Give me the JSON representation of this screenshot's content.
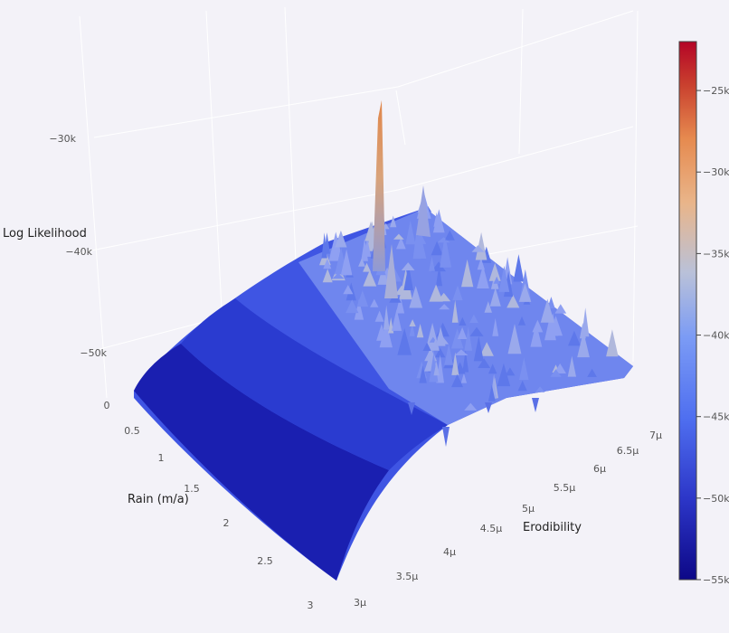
{
  "chart_data": {
    "type": "surface",
    "x_axis": {
      "label": "Rain (m/a)",
      "ticks": [
        "0",
        "0.5",
        "1",
        "1.5",
        "2",
        "2.5",
        "3"
      ],
      "range": [
        0,
        3
      ]
    },
    "y_axis": {
      "label": "Erodibility",
      "ticks": [
        "3μ",
        "3.5μ",
        "4μ",
        "4.5μ",
        "5μ",
        "5.5μ",
        "6μ",
        "6.5μ",
        "7μ"
      ],
      "range": [
        3e-06,
        7e-06
      ]
    },
    "z_axis": {
      "label": "Log Likelihood",
      "ticks": [
        "−50k",
        "−40k",
        "−30k"
      ],
      "range": [
        -55000,
        -22000
      ]
    },
    "colorbar": {
      "ticks": [
        "−25k",
        "−30k",
        "−35k",
        "−40k",
        "−45k",
        "−50k",
        "−55k"
      ],
      "range": [
        -55000,
        -22000
      ],
      "colorscale": [
        "#0d0887",
        "#2c36c8",
        "#4f6ff0",
        "#7b9bf5",
        "#b9c1d9",
        "#e9b58a",
        "#e68a4f",
        "#c9402e",
        "#b40426"
      ]
    },
    "surface_description_values": {
      "peak_value": -23500,
      "peak_rain": 1.4,
      "peak_erodibility": 5.2e-06,
      "floor_value": -55000
    },
    "grid": true,
    "legend": "none"
  }
}
